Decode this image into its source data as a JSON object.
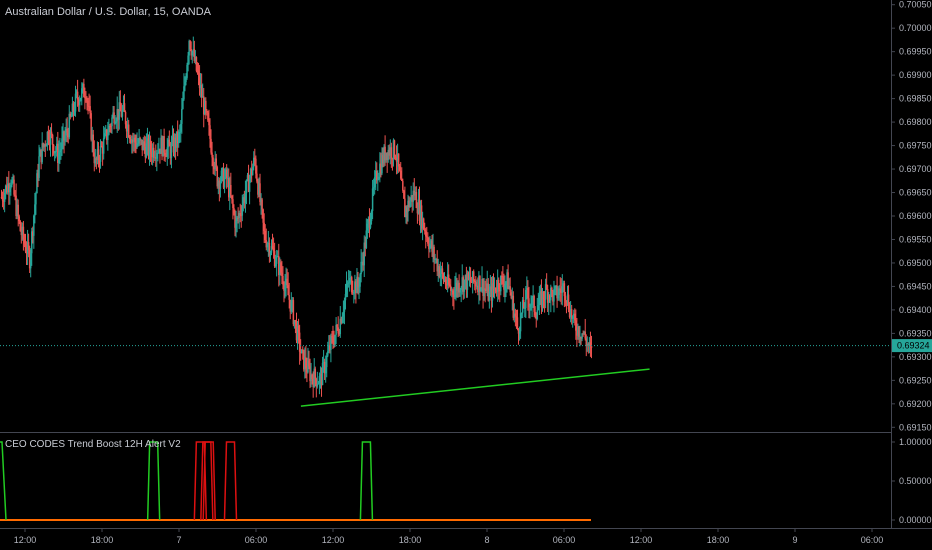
{
  "header": {
    "symbol_title": "Australian Dollar / U.S. Dollar, 15, OANDA"
  },
  "indicator": {
    "title": "CEO CODES Trend Boost 12H Alert V2"
  },
  "colors": {
    "background": "#000000",
    "bull": "#26a69a",
    "bear": "#ef5350",
    "trendline": "#22cc22",
    "price_line": "#26a69a",
    "ind_green": "#22cc22",
    "ind_red": "#dd1111",
    "ind_base": "#ff6a00",
    "grid": "#2a2e39"
  },
  "chart_data": [
    {
      "type": "candlestick",
      "title": "Australian Dollar / U.S. Dollar, 15, OANDA",
      "price_axis_ticks": [
        "0.70050",
        "0.70000",
        "0.69950",
        "0.69900",
        "0.69850",
        "0.69800",
        "0.69750",
        "0.69700",
        "0.69650",
        "0.69600",
        "0.69550",
        "0.69500",
        "0.69450",
        "0.69400",
        "0.69350",
        "0.69300",
        "0.69250",
        "0.69200",
        "0.69150"
      ],
      "time_axis_ticks": [
        "12:00",
        "18:00",
        "7",
        "06:00",
        "12:00",
        "18:00",
        "8",
        "06:00",
        "12:00",
        "18:00",
        "9",
        "06:00"
      ],
      "ylim": [
        0.6915,
        0.7005
      ],
      "last_price": "0.69324",
      "path": [
        0.6964,
        0.6968,
        0.6957,
        0.6951,
        0.6972,
        0.6978,
        0.6973,
        0.6978,
        0.6985,
        0.6987,
        0.6971,
        0.6976,
        0.6982,
        0.6982,
        0.6976,
        0.6975,
        0.6974,
        0.6975,
        0.6974,
        0.6977,
        0.6998,
        0.6989,
        0.6979,
        0.6968,
        0.6968,
        0.6958,
        0.6965,
        0.6972,
        0.6956,
        0.6952,
        0.6947,
        0.694,
        0.693,
        0.6926,
        0.6925,
        0.6932,
        0.6937,
        0.6946,
        0.6945,
        0.6957,
        0.6969,
        0.6974,
        0.6974,
        0.6961,
        0.6965,
        0.6958,
        0.6952,
        0.6947,
        0.6944,
        0.6946,
        0.6946,
        0.6946,
        0.6943,
        0.6946,
        0.6946,
        0.6936,
        0.6943,
        0.694,
        0.6944,
        0.6943,
        0.6945,
        0.6937,
        0.6935,
        0.693
      ],
      "trendline": {
        "start": {
          "time": "09:30",
          "price": 0.69195
        },
        "end": {
          "time": "12:40",
          "price": 0.69274
        }
      }
    },
    {
      "type": "line",
      "title": "CEO CODES Trend Boost 12H Alert V2",
      "y_axis_ticks": [
        "1.00000",
        "0.50000",
        "0.00000"
      ],
      "ylim": [
        0,
        1
      ],
      "series": [
        {
          "color": "green",
          "pulses": [
            0.0,
            0.26,
            0.62
          ]
        },
        {
          "color": "red",
          "pulses": [
            0.339,
            0.35,
            0.354,
            0.39
          ]
        }
      ]
    }
  ]
}
